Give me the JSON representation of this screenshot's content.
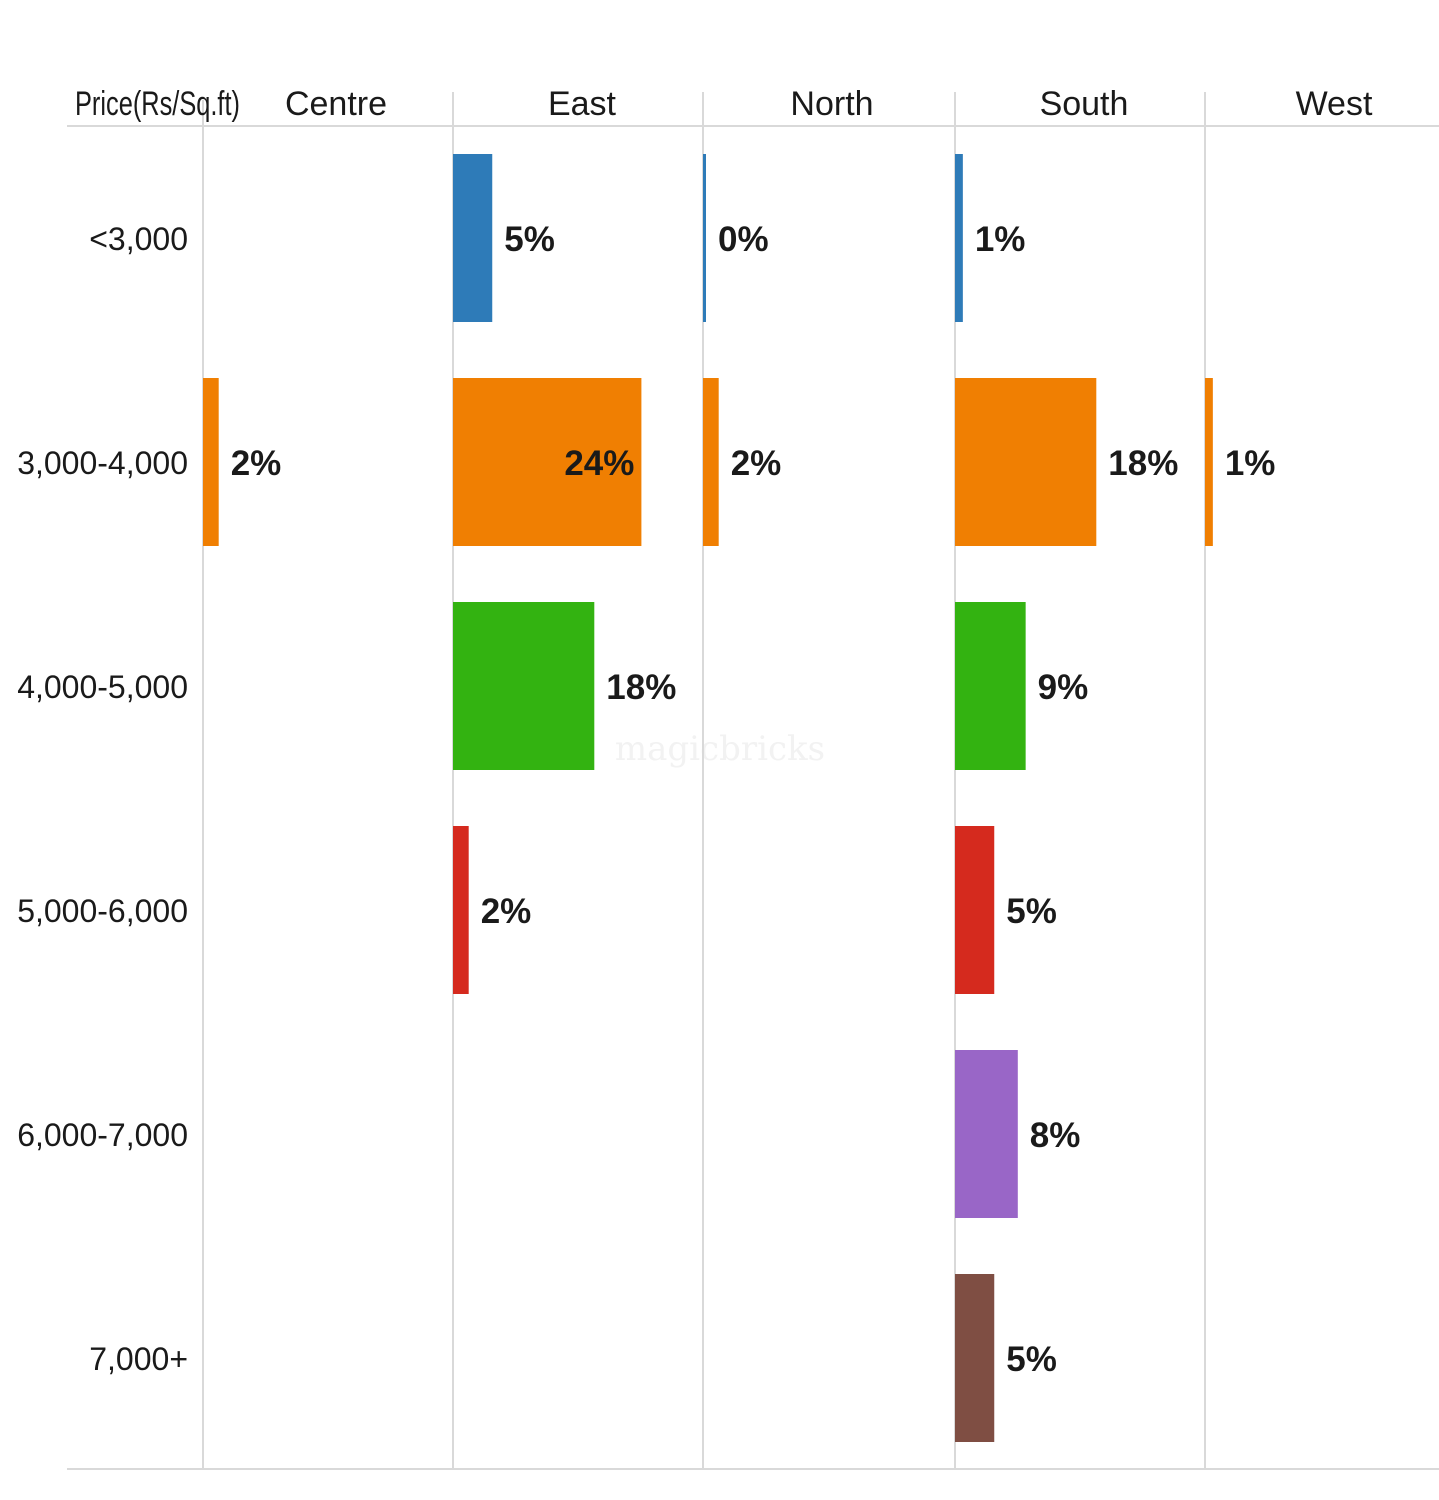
{
  "chart_data": {
    "type": "bar",
    "corner_header": "Price(Rs/Sq.ft)",
    "columns": [
      "Centre",
      "East",
      "North",
      "South",
      "West"
    ],
    "categories": [
      "<3,000",
      "3,000-4,000",
      "4,000-5,000",
      "5,000-6,000",
      "6,000-7,000",
      "7,000+"
    ],
    "category_colors": [
      "#2e7bb8",
      "#f07f02",
      "#33b311",
      "#d52a1e",
      "#9966c7",
      "#7f4e43"
    ],
    "values": [
      [
        null,
        5,
        0,
        1,
        null
      ],
      [
        2,
        24,
        2,
        18,
        1
      ],
      [
        null,
        18,
        null,
        9,
        null
      ],
      [
        null,
        2,
        null,
        5,
        null
      ],
      [
        null,
        null,
        null,
        8,
        null
      ],
      [
        null,
        null,
        null,
        5,
        null
      ]
    ],
    "labels": [
      [
        null,
        "5%",
        "0%",
        "1%",
        null
      ],
      [
        "2%",
        "24%",
        "2%",
        "18%",
        "1%"
      ],
      [
        null,
        "18%",
        null,
        "9%",
        null
      ],
      [
        null,
        "2%",
        null,
        "5%",
        null
      ],
      [
        null,
        null,
        null,
        "8%",
        null
      ],
      [
        null,
        null,
        null,
        "5%",
        null
      ]
    ],
    "value_max": 32,
    "grid": true
  },
  "watermark": "magicbricks"
}
